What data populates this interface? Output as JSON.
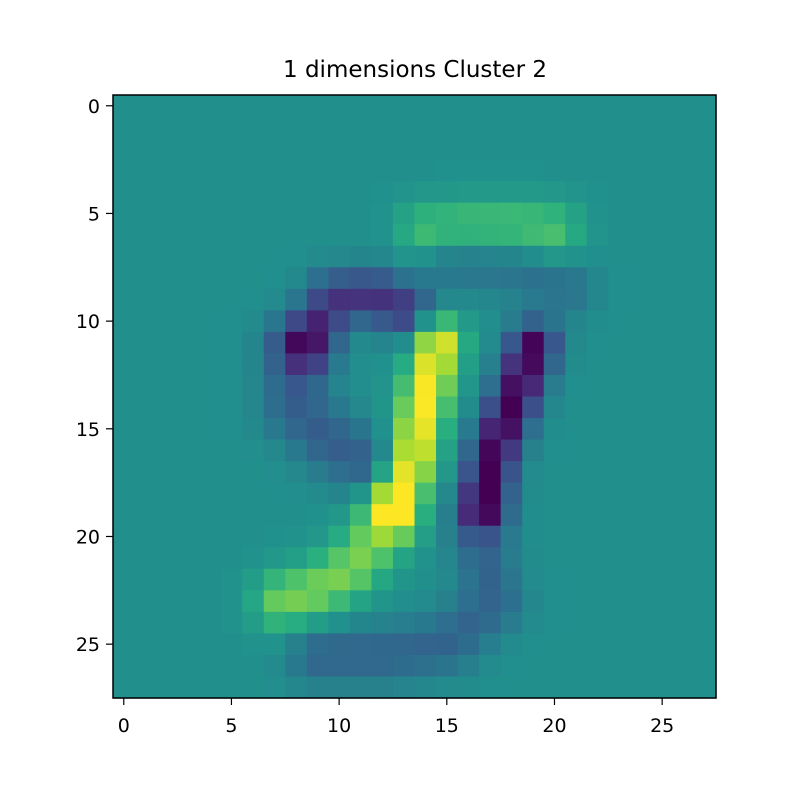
{
  "chart_data": {
    "type": "heatmap",
    "title": "1 dimensions Cluster 2",
    "xlabel": "",
    "ylabel": "",
    "colormap": "viridis",
    "rows": 28,
    "cols": 28,
    "vrange": [
      -1,
      1
    ],
    "xlim": [
      -0.5,
      27.5
    ],
    "ylim": [
      27.5,
      -0.5
    ],
    "xticks": [
      0,
      5,
      10,
      15,
      20,
      25
    ],
    "yticks": [
      0,
      5,
      10,
      15,
      20,
      25
    ],
    "background_value": 0,
    "components": [
      {
        "kind": "stroke",
        "weight": 1.0,
        "sigma": 0.8,
        "points": [
          [
            14.6,
            11.0
          ],
          [
            14.0,
            13.5
          ],
          [
            13.4,
            16.5
          ],
          [
            12.6,
            18.5
          ]
        ]
      },
      {
        "kind": "stroke",
        "weight": 0.6,
        "sigma": 1.0,
        "points": [
          [
            12.2,
            19.5
          ],
          [
            10.5,
            21.5
          ],
          [
            9.0,
            22.5
          ],
          [
            7.5,
            23.0
          ]
        ]
      },
      {
        "kind": "stroke",
        "weight": 0.45,
        "sigma": 0.9,
        "points": [
          [
            14.0,
            5.8
          ],
          [
            16.0,
            5.6
          ],
          [
            18.5,
            5.6
          ],
          [
            20.0,
            5.8
          ]
        ]
      },
      {
        "kind": "stroke",
        "weight": -1.0,
        "sigma": 0.8,
        "points": [
          [
            19.0,
            11.2
          ],
          [
            18.2,
            13.5
          ],
          [
            17.2,
            16.0
          ],
          [
            16.7,
            18.5
          ]
        ]
      },
      {
        "kind": "stroke",
        "weight": -0.7,
        "sigma": 0.9,
        "points": [
          [
            8.5,
            11.0
          ],
          [
            9.8,
            9.0
          ],
          [
            11.5,
            8.8
          ],
          [
            13.0,
            9.5
          ]
        ]
      },
      {
        "kind": "stroke",
        "weight": -0.4,
        "sigma": 1.1,
        "points": [
          [
            8.0,
            11.5
          ],
          [
            8.0,
            14.0
          ],
          [
            9.5,
            15.5
          ],
          [
            11.0,
            16.5
          ]
        ]
      },
      {
        "kind": "stroke",
        "weight": -0.35,
        "sigma": 1.0,
        "points": [
          [
            16.5,
            20.0
          ],
          [
            17.2,
            23.0
          ],
          [
            15.0,
            25.0
          ],
          [
            12.0,
            25.5
          ],
          [
            9.0,
            25.5
          ]
        ]
      },
      {
        "kind": "stroke",
        "weight": -0.25,
        "sigma": 1.0,
        "points": [
          [
            15.0,
            7.2
          ],
          [
            18.0,
            7.5
          ],
          [
            20.5,
            8.5
          ]
        ]
      }
    ]
  }
}
